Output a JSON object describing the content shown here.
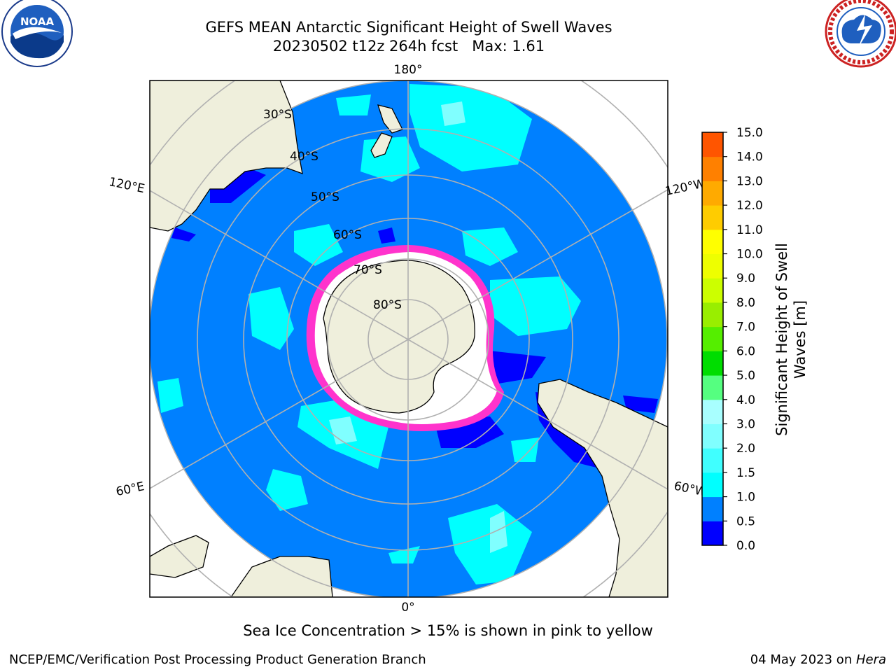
{
  "title_line1": "GEFS MEAN Antarctic Significant Height of Swell Waves",
  "title_line2": "20230502 t12z 264h fcst   Max: 1.61",
  "footer_note": "Sea Ice Concentration > 15% is shown in pink to yellow",
  "credit": "NCEP/EMC/Verification Post Processing Product Generation Branch",
  "date_text": "04 May 2023 on ",
  "machine": "Hera",
  "logos": {
    "noaa": {
      "text": "NOAA",
      "icon": "noaa-logo-icon"
    },
    "nws": {
      "icon": "nws-logo-icon"
    }
  },
  "map": {
    "longitude_labels": {
      "top": "180°",
      "bottom": "0°",
      "left_upper": "120°E",
      "right_upper": "120°W",
      "left_lower": "60°E",
      "right_lower": "60°W"
    },
    "latitude_labels": [
      "30°S",
      "40°S",
      "50°S",
      "60°S",
      "70°S",
      "80°S"
    ],
    "colors": {
      "ocean_main": "#0080ff",
      "ocean_light": "#00ffff",
      "ocean_pale": "#80ffff",
      "ocean_dark": "#0000ff",
      "land": "#efefdc",
      "ice_edge": "#ff33cc",
      "ice_inner": "#ffffff",
      "grid": "#b0b0b0"
    }
  },
  "colorbar": {
    "label": "Significant Height of Swell Waves [m]",
    "ticks": [
      "0.0",
      "0.5",
      "1.0",
      "1.5",
      "2.0",
      "3.0",
      "4.0",
      "5.0",
      "6.0",
      "7.0",
      "8.0",
      "9.0",
      "10.0",
      "11.0",
      "12.0",
      "13.0",
      "14.0",
      "15.0"
    ],
    "colors": [
      "#0000ff",
      "#0080ff",
      "#00ffff",
      "#40ffff",
      "#80ffff",
      "#a8ffff",
      "#55ff80",
      "#00dd00",
      "#55ee00",
      "#99ee00",
      "#ccff00",
      "#eeff00",
      "#ffff00",
      "#ffcc00",
      "#ffaa00",
      "#ff8000",
      "#ff5500",
      "#ff2a00",
      "#ff0000"
    ]
  }
}
